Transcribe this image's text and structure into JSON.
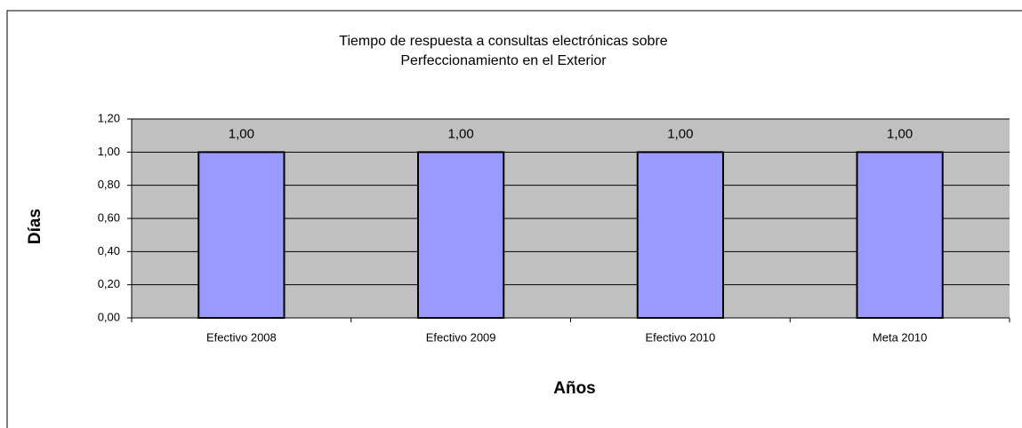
{
  "chart_data": {
    "type": "bar",
    "title": [
      "Tiempo de respuesta a consultas electrónicas sobre",
      "Perfeccionamiento en el Exterior"
    ],
    "x_label": "Años",
    "y_label": "Días",
    "categories": [
      "Efectivo 2008",
      "Efectivo 2009",
      "Efectivo 2010",
      "Meta 2010"
    ],
    "values": [
      1,
      1,
      1,
      1
    ],
    "value_labels": [
      "1,00",
      "1,00",
      "1,00",
      "1,00"
    ],
    "color": "#9999ff",
    "ylim": [
      0,
      1.2
    ],
    "yticks": [
      {
        "value": 0,
        "label": "0,00"
      },
      {
        "value": 0.2,
        "label": "0,20"
      },
      {
        "value": 0.4,
        "label": "0,40"
      },
      {
        "value": 0.6,
        "label": "0,60"
      },
      {
        "value": 0.8,
        "label": "0,80"
      },
      {
        "value": 1,
        "label": "1,00"
      },
      {
        "value": 1.2,
        "label": "1,20"
      }
    ],
    "grid": true
  }
}
